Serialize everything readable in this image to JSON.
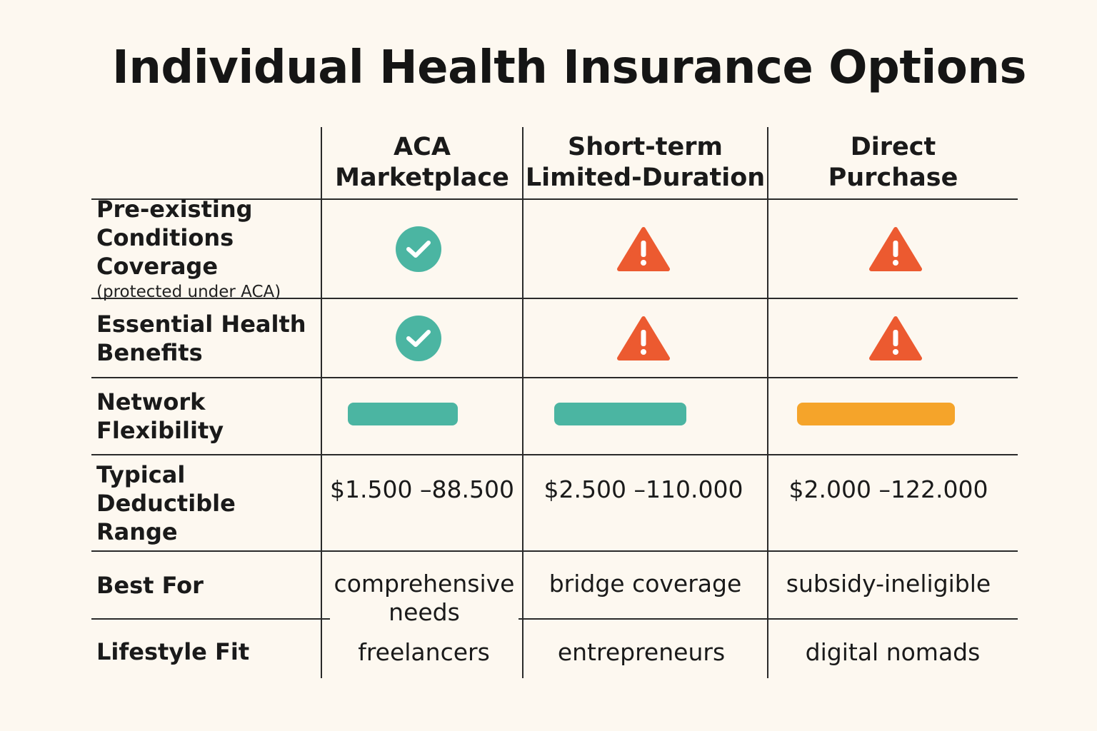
{
  "title": "Individual Health Insurance Options",
  "columns": [
    {
      "line1": "ACA",
      "line2": "Marketplace"
    },
    {
      "line1": "Short-term",
      "line2": "Limited-Duration"
    },
    {
      "line1": "Direct",
      "line2": "Purchase"
    }
  ],
  "rows": {
    "preexisting": {
      "label_line1": "Pre-existing",
      "label_line2": "Conditions Coverage",
      "label_note": "(protected under ACA)",
      "icons": [
        "check-icon",
        "warning-icon",
        "warning-icon"
      ]
    },
    "essential": {
      "label_line1": "Essential Health",
      "label_line2": "Benefits",
      "icons": [
        "check-icon",
        "warning-icon",
        "warning-icon"
      ]
    },
    "network": {
      "label_line1": "Network",
      "label_line2": "Flexibility",
      "levels": [
        0.7,
        0.84,
        1.0
      ],
      "colors": [
        "#4bb5a2",
        "#4bb5a2",
        "#f5a42a"
      ]
    },
    "deductible": {
      "label_line1": "Typical",
      "label_line2": "Deductible Range",
      "values": [
        "$1.500 –88.500",
        "$2.500 –110.000",
        "$2.000 –122.000"
      ]
    },
    "best_for": {
      "label": "Best For",
      "values": [
        "comprehensive needs",
        "bridge coverage",
        "subsidy-ineligible"
      ]
    },
    "lifestyle": {
      "label": "Lifestyle Fit",
      "values": [
        "freelancers",
        "entrepreneurs",
        "digital nomads"
      ]
    }
  },
  "colors": {
    "check": "#4bb5a2",
    "warning": "#ec5a30",
    "bar_teal": "#4bb5a2",
    "bar_orange": "#f5a42a",
    "background": "#fdf8f0"
  }
}
